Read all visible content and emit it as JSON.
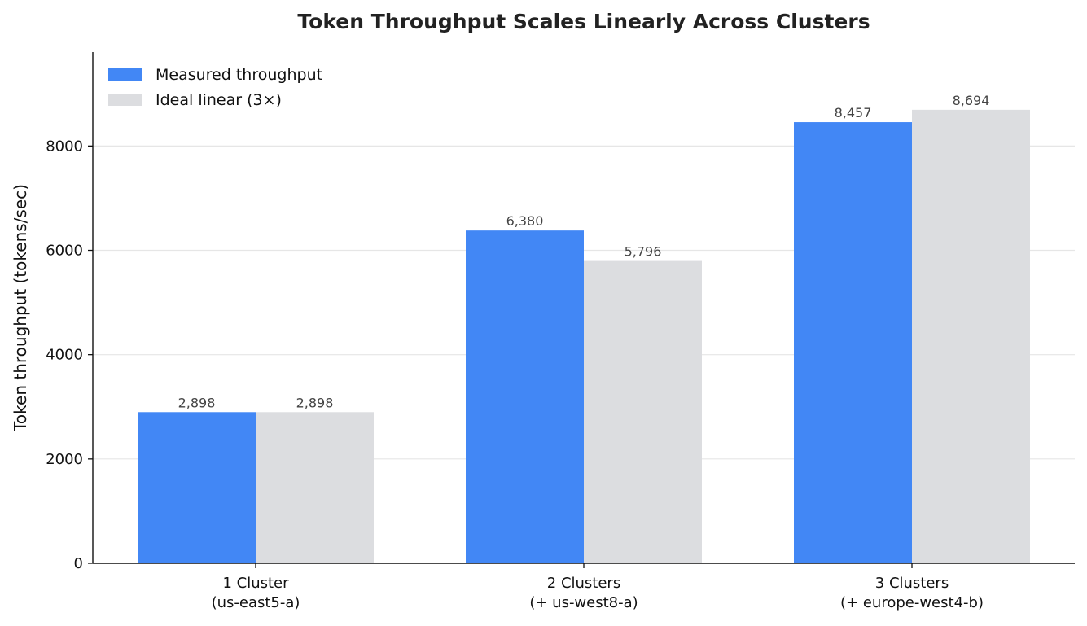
{
  "chart_data": {
    "type": "bar",
    "title": "Token Throughput Scales Linearly Across Clusters",
    "xlabel": "",
    "ylabel": "Token throughput (tokens/sec)",
    "ylim": [
      0,
      9800
    ],
    "yticks": [
      0,
      2000,
      4000,
      6000,
      8000
    ],
    "grid": "horizontal",
    "legend_position": "top-left",
    "categories": [
      [
        "1 Cluster",
        "(us-east5-a)"
      ],
      [
        "2 Clusters",
        "(+ us-west8-a)"
      ],
      [
        "3 Clusters",
        "(+ europe-west4-b)"
      ]
    ],
    "series": [
      {
        "name": "Measured throughput",
        "color": "#4287f5",
        "values": [
          2898,
          6380,
          8457
        ],
        "labels": [
          "2,898",
          "6,380",
          "8,457"
        ]
      },
      {
        "name": "Ideal linear (3×)",
        "color": "#dcdde0",
        "values": [
          2898,
          5796,
          8694
        ],
        "labels": [
          "2,898",
          "5,796",
          "8,694"
        ]
      }
    ]
  }
}
